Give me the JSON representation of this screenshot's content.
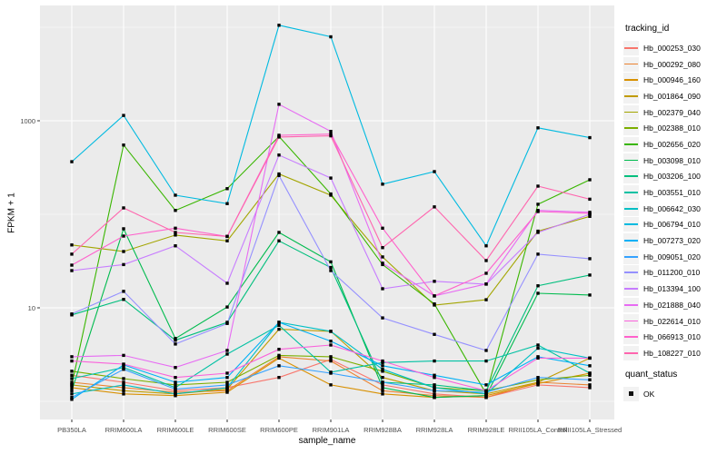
{
  "axes": {
    "x_title": "sample_name",
    "y_title": "FPKM + 1"
  },
  "legend": {
    "tracking_title": "tracking_id",
    "quant_title": "quant_status",
    "quant_ok_label": "OK"
  },
  "chart_data": {
    "type": "line",
    "title": "",
    "xlabel": "sample_name",
    "ylabel": "FPKM + 1",
    "y_scale": "log10",
    "y_ticks": [
      10,
      1000
    ],
    "y_minor_gridlines": [
      1,
      100,
      10000
    ],
    "ylim": [
      0.75,
      18000
    ],
    "grid": true,
    "legend_position": "right",
    "point_marker": "black square (quant_status = OK) on every point",
    "x_categories": [
      "PB350LA",
      "RRIM600LA",
      "RRIM600LE",
      "RRIM600SE",
      "RRIM600PE",
      "RRIM901LA",
      "RRIM928BA",
      "RRIM928LA",
      "RRIM928LE",
      "RRII105LA_Control",
      "RRII105LA_Stressed"
    ],
    "series": [
      {
        "name": "Hb_000253_030",
        "color": "#F8766D",
        "values": [
          1.9,
          1.6,
          1.3,
          1.4,
          1.8,
          2.8,
          1.5,
          1.2,
          1.1,
          1.5,
          1.4
        ]
      },
      {
        "name": "Hb_000292_080",
        "color": "#EA8331",
        "values": [
          1.6,
          1.4,
          1.25,
          1.3,
          3.0,
          2.7,
          1.3,
          1.15,
          1.1,
          1.6,
          1.5
        ]
      },
      {
        "name": "Hb_000946_160",
        "color": "#D89000",
        "values": [
          1.4,
          1.2,
          1.15,
          1.25,
          2.9,
          1.5,
          1.2,
          1.1,
          1.15,
          1.55,
          2.0
        ]
      },
      {
        "name": "Hb_001864_090",
        "color": "#C09B00",
        "values": [
          1.5,
          1.3,
          1.2,
          1.35,
          5.9,
          5.6,
          1.8,
          1.3,
          1.2,
          1.6,
          2.9
        ]
      },
      {
        "name": "Hb_002379_040",
        "color": "#A3A500",
        "values": [
          47,
          40,
          60,
          52,
          270,
          160,
          35,
          10.7,
          12.2,
          66,
          95
        ]
      },
      {
        "name": "Hb_002388_010",
        "color": "#7CAE00",
        "values": [
          2.1,
          1.75,
          1.5,
          1.6,
          3.1,
          3.0,
          2.1,
          1.4,
          1.3,
          1.7,
          1.9
        ]
      },
      {
        "name": "Hb_002656_020",
        "color": "#39B600",
        "values": [
          1.5,
          550,
          110,
          188,
          680,
          165,
          29,
          11,
          1.2,
          128,
          234
        ]
      },
      {
        "name": "Hb_003098_010",
        "color": "#00BB4E",
        "values": [
          1.3,
          70,
          4.7,
          10.2,
          64,
          31,
          1.4,
          1.1,
          1.15,
          14.3,
          13.7
        ]
      },
      {
        "name": "Hb_003206_100",
        "color": "#00BF7D",
        "values": [
          8.4,
          12.3,
          4.5,
          7.0,
          52,
          27,
          1.6,
          1.5,
          1.3,
          17.2,
          22.4
        ]
      },
      {
        "name": "Hb_003551_010",
        "color": "#00C1A3",
        "values": [
          1.75,
          2.3,
          1.4,
          3.2,
          6.5,
          2.05,
          2.6,
          2.7,
          2.7,
          4.0,
          2.0
        ]
      },
      {
        "name": "Hb_006642_030",
        "color": "#00BFC4",
        "values": [
          1.2,
          1.5,
          1.2,
          1.4,
          7.0,
          5.6,
          2.2,
          1.4,
          1.2,
          3.7,
          2.9
        ]
      },
      {
        "name": "Hb_006794_010",
        "color": "#00BAE0",
        "values": [
          365,
          1140,
          160,
          130,
          10500,
          7900,
          210,
          286,
          46,
          840,
          660
        ]
      },
      {
        "name": "Hb_007273_020",
        "color": "#00B0F6",
        "values": [
          1.05,
          2.45,
          1.6,
          1.8,
          7.0,
          4.4,
          2.4,
          1.9,
          1.5,
          3.0,
          2.4
        ]
      },
      {
        "name": "Hb_009051_020",
        "color": "#35A2FF",
        "values": [
          1.1,
          2.2,
          1.35,
          1.5,
          2.4,
          2.0,
          1.6,
          1.3,
          1.25,
          1.8,
          1.7
        ]
      },
      {
        "name": "Hb_011200_010",
        "color": "#9590FF",
        "values": [
          8.6,
          15,
          4.1,
          6.8,
          260,
          25,
          7.8,
          5.2,
          3.5,
          37.5,
          33.5
        ]
      },
      {
        "name": "Hb_013394_100",
        "color": "#C77CFF",
        "values": [
          25,
          29,
          46,
          18.3,
          430,
          244,
          16,
          19.2,
          17.9,
          64,
          100
        ]
      },
      {
        "name": "Hb_021888_040",
        "color": "#E76BF3",
        "values": [
          3.0,
          3.1,
          2.3,
          3.5,
          1500,
          770,
          30,
          13.4,
          18,
          110,
          105
        ]
      },
      {
        "name": "Hb_022614_010",
        "color": "#FA62DB",
        "values": [
          2.7,
          2.5,
          1.8,
          2.0,
          3.6,
          4.0,
          2.7,
          1.8,
          1.3,
          2.9,
          2.9
        ]
      },
      {
        "name": "Hb_066913_010",
        "color": "#FF61CC",
        "values": [
          28.6,
          58.5,
          71,
          58,
          700,
          720,
          71,
          13.4,
          23.4,
          107,
          102
        ]
      },
      {
        "name": "Hb_108227_010",
        "color": "#FF65AE",
        "values": [
          37.5,
          117,
          64,
          58,
          670,
          690,
          44,
          120,
          32,
          200,
          145
        ]
      }
    ]
  },
  "style": {
    "panel_bg": "#EBEBEB",
    "grid_color": "#FFFFFF",
    "tick_label_color": "#4D4D4D",
    "point_color": "#000000",
    "legend_key_bg": "#F2F2F2"
  }
}
